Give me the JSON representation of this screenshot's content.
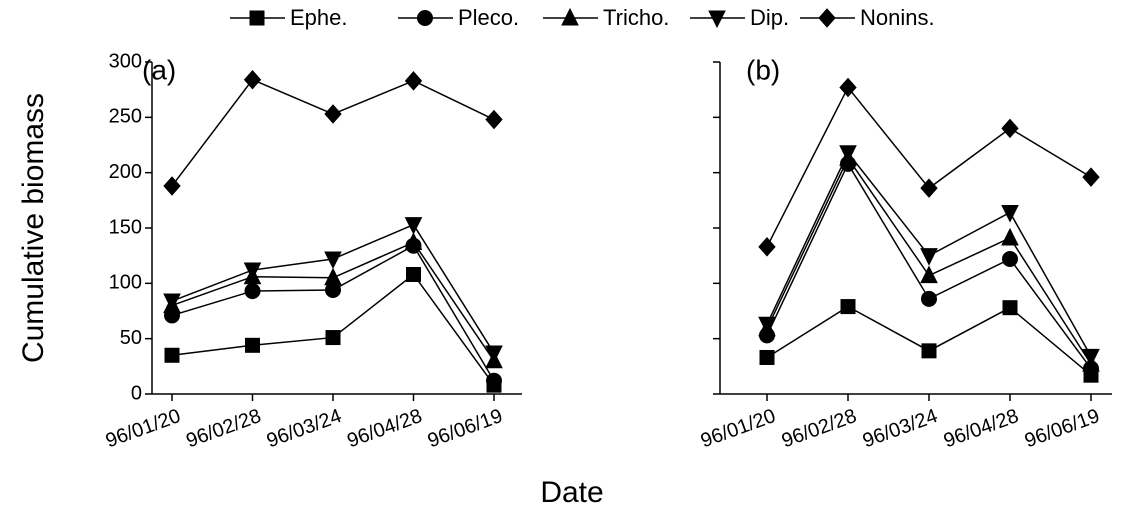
{
  "chart_data": [
    {
      "type": "line",
      "title": "(a)",
      "ylabel": "Cumulative biomass",
      "xlabel": "Date",
      "categories": [
        "96/01/20",
        "96/02/28",
        "96/03/24",
        "96/04/28",
        "96/06/19"
      ],
      "ylim": [
        0,
        300
      ],
      "yticks": [
        0,
        50,
        100,
        150,
        200,
        250,
        300
      ],
      "series": [
        {
          "name": "Ephe.",
          "color": "#000000",
          "marker": "square",
          "values": [
            35,
            44,
            51,
            108,
            8
          ]
        },
        {
          "name": "Pleco.",
          "color": "#000000",
          "marker": "circle",
          "values": [
            71,
            93,
            94,
            134,
            12
          ]
        },
        {
          "name": "Tricho.",
          "color": "#000000",
          "marker": "triangle",
          "values": [
            80,
            106,
            105,
            137,
            30
          ]
        },
        {
          "name": "Dip.",
          "color": "#000000",
          "marker": "triangle-down",
          "values": [
            84,
            112,
            122,
            153,
            37
          ]
        },
        {
          "name": "Nonins.",
          "color": "#000000",
          "marker": "diamond",
          "values": [
            188,
            284,
            253,
            283,
            248
          ]
        }
      ]
    },
    {
      "type": "line",
      "title": "(b)",
      "categories": [
        "96/01/20",
        "96/02/28",
        "96/03/24",
        "96/04/28",
        "96/06/19"
      ],
      "ylim": [
        0,
        300
      ],
      "yticks": [
        0,
        50,
        100,
        150,
        200,
        250,
        300
      ],
      "series": [
        {
          "color": "#000000",
          "marker": "square",
          "values": [
            33,
            79,
            39,
            78,
            17
          ]
        },
        {
          "color": "#000000",
          "marker": "circle",
          "values": [
            53,
            208,
            86,
            122,
            23
          ]
        },
        {
          "color": "#000000",
          "marker": "triangle",
          "values": [
            59,
            213,
            107,
            141,
            27
          ]
        },
        {
          "color": "#000000",
          "marker": "triangle-down",
          "values": [
            63,
            218,
            125,
            164,
            34
          ]
        },
        {
          "color": "#000000",
          "marker": "diamond",
          "values": [
            133,
            277,
            186,
            240,
            196
          ]
        }
      ]
    }
  ]
}
